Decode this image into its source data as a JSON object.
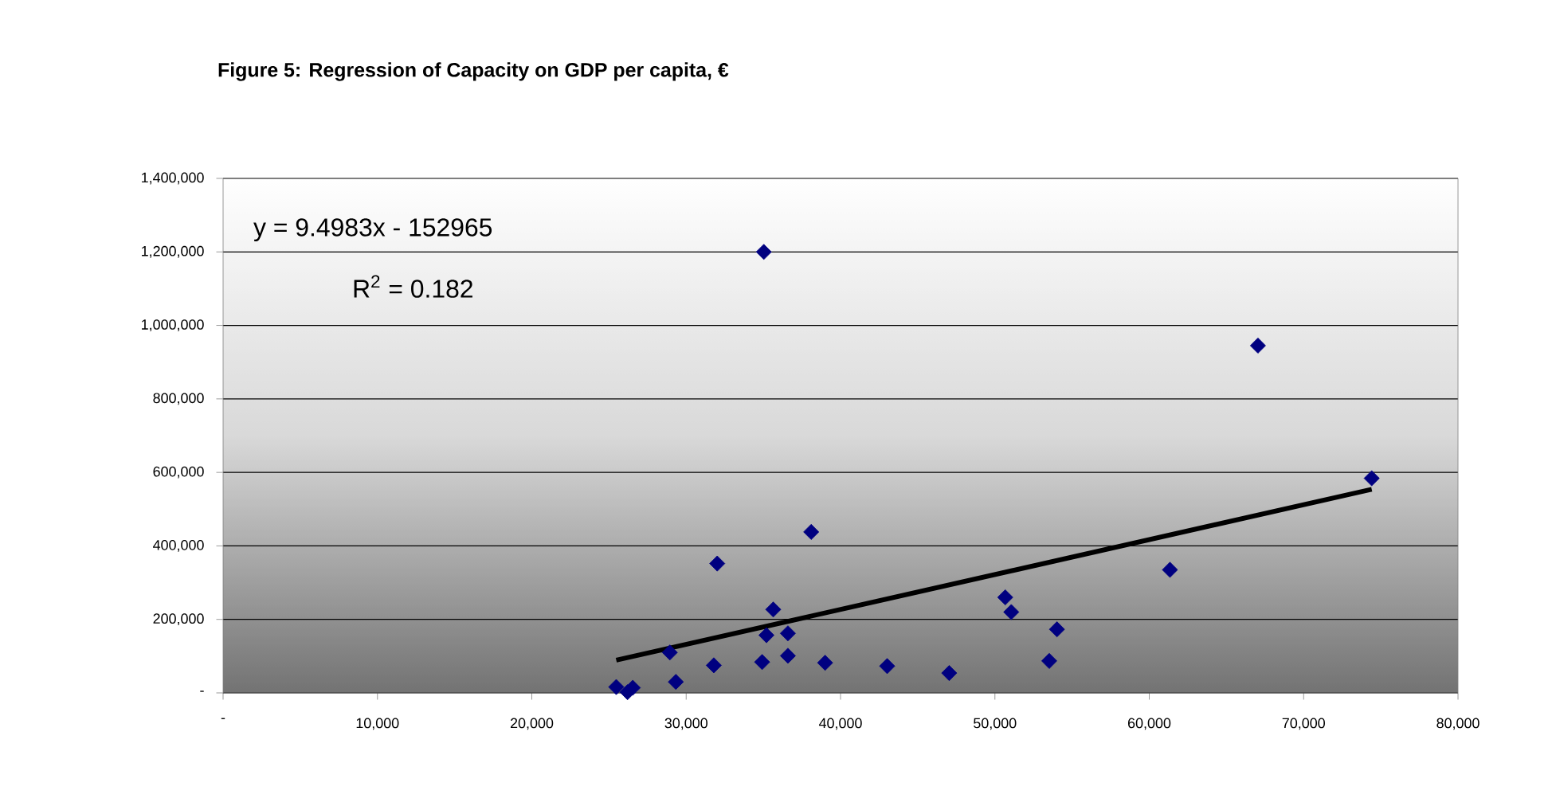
{
  "chart_data": {
    "type": "scatter",
    "title": "Figure 5: Regression of Capacity on GDP per capita, €",
    "xlim": [
      0,
      80000
    ],
    "ylim": [
      0,
      1400000
    ],
    "xticks": [
      {
        "value": 0,
        "label": "-"
      },
      {
        "value": 10000,
        "label": "10,000"
      },
      {
        "value": 20000,
        "label": "20,000"
      },
      {
        "value": 30000,
        "label": "30,000"
      },
      {
        "value": 40000,
        "label": "40,000"
      },
      {
        "value": 50000,
        "label": "50,000"
      },
      {
        "value": 60000,
        "label": "60,000"
      },
      {
        "value": 70000,
        "label": "70,000"
      },
      {
        "value": 80000,
        "label": "80,000"
      }
    ],
    "yticks": [
      {
        "value": 0,
        "label": "-"
      },
      {
        "value": 200000,
        "label": "200,000"
      },
      {
        "value": 400000,
        "label": "400,000"
      },
      {
        "value": 600000,
        "label": "600,000"
      },
      {
        "value": 800000,
        "label": "800,000"
      },
      {
        "value": 1000000,
        "label": "1,000,000"
      },
      {
        "value": 1200000,
        "label": "1,200,000"
      },
      {
        "value": 1400000,
        "label": "1,400,000"
      }
    ],
    "grid": "y",
    "marker": "diamond",
    "annotations": [
      "y = 9.4983x - 152965",
      "R$^{2}$ = 0.182"
    ],
    "series": [
      {
        "color": "#000080",
        "x": [
          35030,
          67040,
          74410,
          61340,
          38100,
          32010,
          35640,
          35200,
          36590,
          36590,
          34920,
          39000,
          43020,
          47040,
          31790,
          28940,
          29330,
          25470,
          26200,
          26540,
          50670,
          51060,
          54020,
          53520
        ],
        "values": [
          1200000,
          945000,
          584000,
          335000,
          438000,
          352000,
          227000,
          157000,
          162000,
          101000,
          84000,
          82000,
          73000,
          54000,
          75000,
          110000,
          30000,
          16000,
          2000,
          14000,
          260000,
          220000,
          173000,
          87000
        ]
      },
      {
        "type": "line",
        "marker": "none",
        "color": "#000000",
        "x": [
          25470,
          74410
        ],
        "values": [
          89000,
          554000
        ]
      }
    ]
  }
}
